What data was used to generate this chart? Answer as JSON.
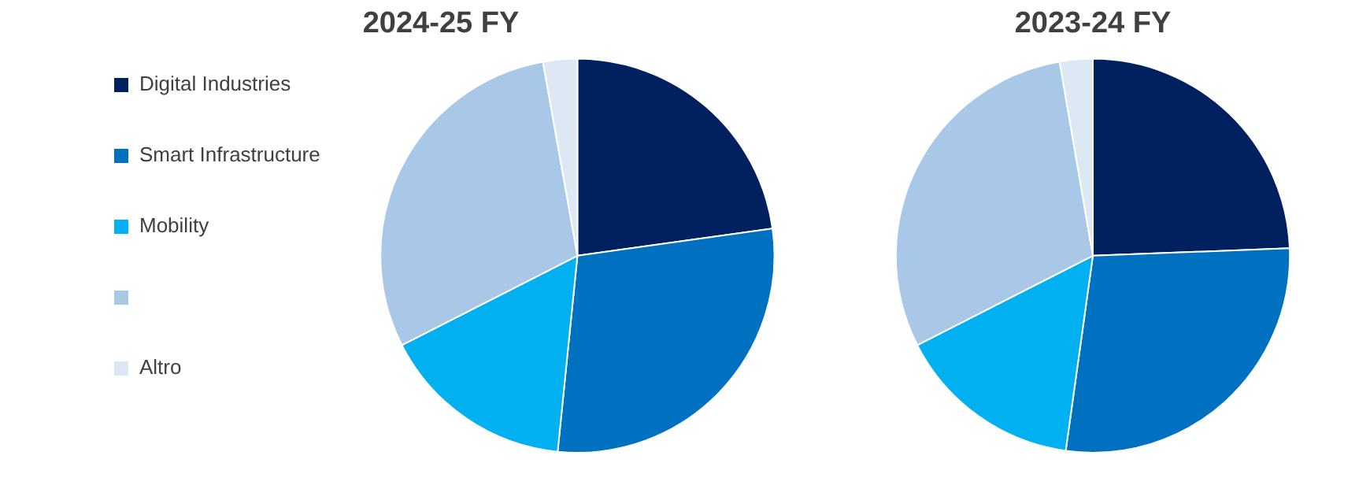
{
  "chart_data": [
    {
      "type": "pie",
      "title": "2024-25 FY",
      "categories": [
        "Digital Industries",
        "Smart Infrastructure",
        "Mobility",
        null,
        "Altro"
      ],
      "values": [
        22.8,
        28.8,
        15.9,
        29.7,
        2.8
      ],
      "colors": [
        "#002060",
        "#0070c0",
        "#00b0f0",
        "#a9c8e8",
        "#dde8f5"
      ],
      "legend": "left"
    },
    {
      "type": "pie",
      "title": "2023-24 FY",
      "categories": [
        null,
        null,
        null,
        null,
        null
      ],
      "values": [
        24.4,
        27.8,
        15.3,
        29.8,
        2.7
      ],
      "colors": [
        "#002060",
        "#0070c0",
        "#00b0f0",
        "#a9c8e8",
        "#dde8f5"
      ]
    }
  ]
}
